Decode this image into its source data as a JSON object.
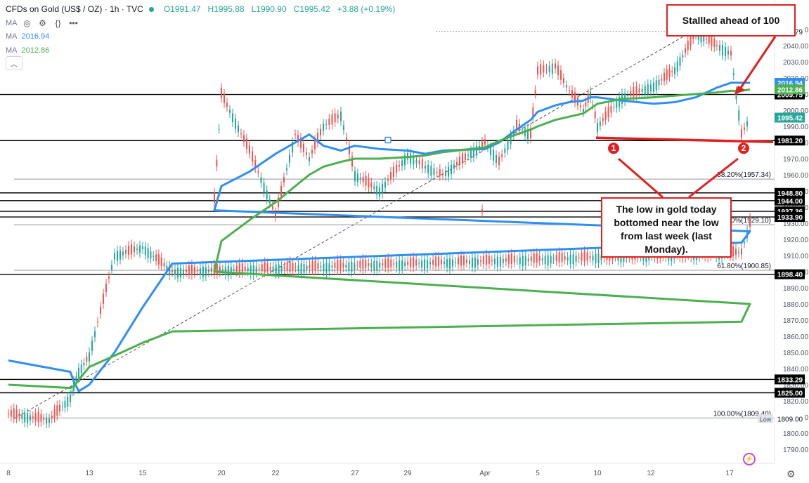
{
  "header": {
    "title": "CFDs on Gold (US$ / OZ) · 1h · TVC",
    "open": "O1991.47",
    "high": "H1995.88",
    "low": "L1990.90",
    "close": "C1995.42",
    "change": "+3.88 (+0.19%)"
  },
  "ma_rows": [
    {
      "label": "MA",
      "value": "2016.94",
      "color": "#2f8ff1"
    },
    {
      "label": "MA",
      "value": "2012.86",
      "color": "#4caf50"
    }
  ],
  "callouts": {
    "top": "Stallled ahead of 100",
    "bottom": "The low in gold today bottomed near the low from last week (last Monday)."
  },
  "markers": [
    "1",
    "2"
  ],
  "chart_data": {
    "type": "line",
    "title": "CFDs on Gold (US$ / OZ) · 1h · TVC",
    "xlabel": "",
    "ylabel": "",
    "ylim": [
      1790,
      2060
    ],
    "x_ticks": [
      "8",
      "13",
      "15",
      "20",
      "22",
      "27",
      "29",
      "Apr",
      "5",
      "10",
      "12",
      "17"
    ],
    "y_ticks": [
      1790,
      1800,
      1810,
      1820,
      1830,
      1840,
      1850,
      1860,
      1870,
      1880,
      1890,
      1900,
      1910,
      1920,
      1930,
      1940,
      1950,
      1960,
      1970,
      1980,
      1990,
      2000,
      2010,
      2020,
      2030,
      2040,
      2050
    ],
    "price_series": {
      "name": "Gold",
      "x": [
        "8",
        "9",
        "10",
        "11",
        "12",
        "13",
        "14",
        "15",
        "16",
        "17",
        "18",
        "19",
        "20",
        "21",
        "22",
        "23",
        "24",
        "25",
        "26",
        "27",
        "28",
        "29",
        "30",
        "31",
        "Apr",
        "2",
        "3",
        "4",
        "5",
        "6",
        "7",
        "8",
        "9",
        "10",
        "11",
        "12",
        "13",
        "14",
        "15",
        "16",
        "17",
        "18"
      ],
      "values": [
        1812,
        1808,
        1822,
        1830,
        1838,
        1848,
        1910,
        1915,
        1900,
        1912,
        1930,
        1945,
        2010,
        1975,
        1935,
        1985,
        1970,
        1990,
        1997,
        1960,
        1950,
        1972,
        1965,
        1960,
        1980,
        1968,
        1990,
        1985,
        2024,
        2027,
        2012,
        2000,
        2010,
        1990,
        2008,
        2015,
        2025,
        2048,
        2040,
        2035,
        1985,
        1995.42
      ]
    },
    "ma_series": [
      {
        "name": "MA",
        "value_label": "2016.94",
        "color": "#2f8ff1",
        "x": [
          "8",
          "10",
          "11",
          "12",
          "13",
          "14",
          "15",
          "16",
          "17",
          "18",
          "19",
          "20",
          "21",
          "22",
          "23",
          "24",
          "25",
          "26",
          "27",
          "28",
          "29",
          "30",
          "31",
          "Apr",
          "2",
          "3",
          "4",
          "5",
          "6",
          "7",
          "8",
          "9",
          "10",
          "11",
          "12",
          "13",
          "14",
          "15",
          "16",
          "17",
          "18"
        ],
        "values": [
          1845,
          1838,
          1832,
          1826,
          1830,
          1850,
          1878,
          1905,
          1918,
          1925,
          1938,
          1953,
          1962,
          1973,
          1980,
          1985,
          1978,
          1975,
          1978,
          1976,
          1975,
          1973,
          1975,
          1976,
          1980,
          1988,
          1994,
          1999,
          2003,
          2005,
          2006,
          2008,
          2008,
          2006,
          2004,
          2005,
          2008,
          2014,
          2017,
          2017,
          2016.94
        ]
      },
      {
        "name": "MA",
        "value_label": "2012.86",
        "color": "#4caf50",
        "x": [
          "8",
          "10",
          "11",
          "12",
          "13",
          "14",
          "15",
          "16",
          "17",
          "18",
          "19",
          "20",
          "21",
          "22",
          "23",
          "24",
          "25",
          "26",
          "27",
          "28",
          "29",
          "30",
          "31",
          "Apr",
          "2",
          "3",
          "4",
          "5",
          "6",
          "7",
          "8",
          "9",
          "10",
          "11",
          "12",
          "13",
          "14",
          "15",
          "16",
          "17",
          "18"
        ],
        "values": [
          1830,
          1828,
          1829,
          1833,
          1841,
          1848,
          1856,
          1863,
          1869,
          1880,
          1900,
          1919,
          1932,
          1943,
          1953,
          1960,
          1965,
          1968,
          1970,
          1970,
          1971,
          1972,
          1974,
          1977,
          1981,
          1985,
          1988,
          1990,
          1994,
          1996,
          1998,
          2001,
          2004,
          2007,
          2008,
          2009,
          2010,
          2011,
          2012,
          2012,
          2012.86
        ]
      }
    ],
    "horizontal_levels": [
      {
        "label": "2009.75",
        "value": 2009.75
      },
      {
        "label": "1981.20",
        "value": 1981.2
      },
      {
        "label": "1948.80",
        "value": 1948.8
      },
      {
        "label": "1944.00",
        "value": 1944.0
      },
      {
        "label": "1937.36",
        "value": 1937.36
      },
      {
        "label": "1933.90",
        "value": 1933.9
      },
      {
        "label": "1898.40",
        "value": 1898.4
      },
      {
        "label": "1833.29",
        "value": 1833.29
      },
      {
        "label": "1825.00",
        "value": 1825.0
      }
    ],
    "fib_levels": [
      {
        "label": "0.00%(2048.79)",
        "value": 2048.79
      },
      {
        "label": "38.20%(1957.34)",
        "value": 1957.34
      },
      {
        "label": "50.00%(1929.10)",
        "value": 1929.1
      },
      {
        "label": "61.80%(1900.85)",
        "value": 1900.85
      },
      {
        "label": "100.00%(1809.40)",
        "value": 1809.4
      }
    ],
    "price_labels": [
      {
        "text": "2048.79",
        "value": 2048.79,
        "bg": "#ffffff",
        "fg": "#131722",
        "tag": "High"
      },
      {
        "text": "2016.94",
        "value": 2016.94,
        "bg": "#2f8ff1",
        "fg": "#ffffff"
      },
      {
        "text": "2012.86",
        "value": 2012.86,
        "bg": "#4caf50",
        "fg": "#ffffff"
      },
      {
        "text": "1995.42",
        "value": 1995.42,
        "bg": "#26a69a",
        "fg": "#ffffff"
      },
      {
        "text": "1809.00",
        "value": 1809.0,
        "bg": "#ffffff",
        "fg": "#131722",
        "tag": "Low"
      }
    ],
    "support_line_value": 1981.2,
    "grid": false,
    "colors": {
      "up": "#26a69a",
      "down": "#ef5350",
      "annotation": "#e02020"
    }
  }
}
